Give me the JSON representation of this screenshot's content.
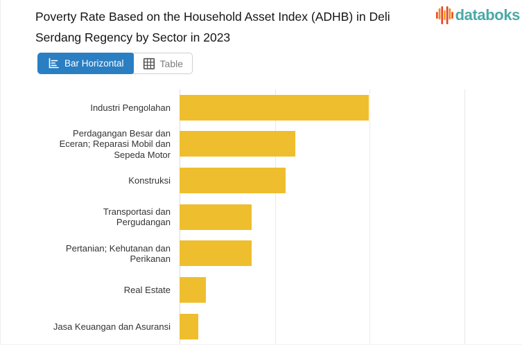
{
  "header": {
    "title": "Poverty Rate Based on the Household Asset Index (ADHB) in Deli Serdang Regency by Sector in 2023",
    "logo_text": "databoks"
  },
  "toolbar": {
    "bar_horizontal_label": "Bar Horizontal",
    "table_label": "Table"
  },
  "chart_data": {
    "type": "bar",
    "orientation": "horizontal",
    "title": "Poverty Rate Based on the Household Asset Index (ADHB) in Deli Serdang Regency by Sector in 2023",
    "categories": [
      "Industri Pengolahan",
      "Perdagangan Besar dan Eceran; Reparasi Mobil dan Sepeda Motor",
      "Konstruksi",
      "Transportasi dan Pergudangan",
      "Pertanian; Kehutanan dan Perikanan",
      "Real Estate",
      "Jasa Keuangan dan Asuransi"
    ],
    "label_lines": [
      [
        "Industri Pengolahan"
      ],
      [
        "Perdagangan Besar dan",
        "Eceran; Reparasi Mobil dan",
        "Sepeda Motor"
      ],
      [
        "Konstruksi"
      ],
      [
        "Transportasi dan",
        "Pergudangan"
      ],
      [
        "Pertanian; Kehutanan dan",
        "Perikanan"
      ],
      [
        "Real Estate"
      ],
      [
        "Jasa Keuangan dan Asuransi"
      ]
    ],
    "values": [
      2.0,
      1.22,
      1.12,
      0.76,
      0.76,
      0.28,
      0.2
    ],
    "units_note": "x-axis tick labels are cut off in the screenshot; values estimated in gridline units (one gridline interval = 1)",
    "xlim": [
      0,
      3.62
    ],
    "gridlines": [
      1,
      2,
      3
    ],
    "grid": true,
    "legend": false,
    "bar_color": "#eebe2e"
  },
  "colors": {
    "bar": "#eebe2e",
    "active_button_bg": "#2a7ec2",
    "active_button_text": "#ffffff",
    "inactive_button_text": "#7d7d7d",
    "button_border": "#cfcfcf",
    "title_text": "#141414",
    "label_text": "#333333",
    "gridline": "#e8e8e8",
    "axis_line": "#dcdcdc",
    "logo_teal": "#4aa9a6",
    "logo_orange": "#f08c1e",
    "logo_red": "#e8502c"
  }
}
